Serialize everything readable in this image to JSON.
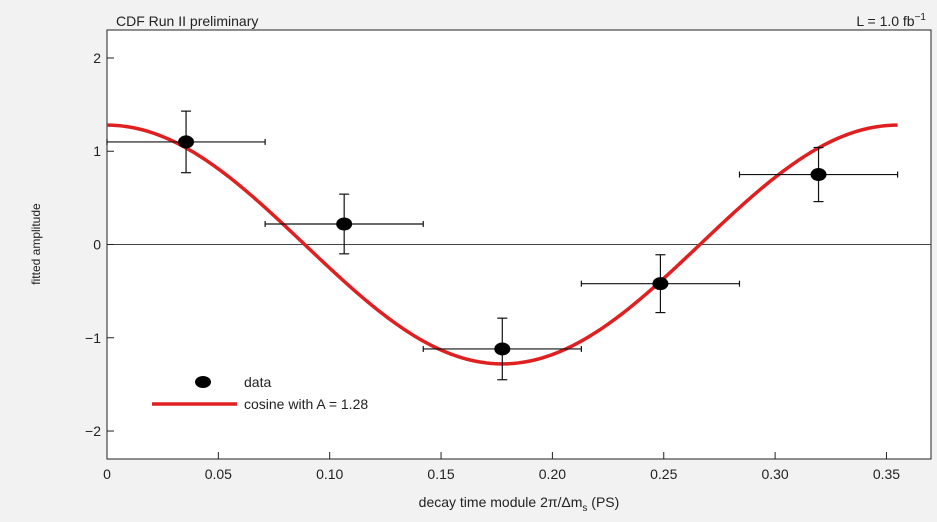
{
  "chart_data": {
    "type": "scatter",
    "annotations": {
      "top_left": "CDF Run II preliminary",
      "top_right_main": "L = 1.0 fb",
      "top_right_sup": "−1"
    },
    "xlabel": "decay time module 2π/Δm",
    "xlabel_sub": "s",
    "xlabel_suffix": " (PS)",
    "ylabel": "fitted amplitude",
    "xlim": [
      0,
      0.37
    ],
    "ylim": [
      -2.3,
      2.3
    ],
    "x_ticks": [
      0,
      0.05,
      0.1,
      0.15,
      0.2,
      0.25,
      0.3,
      0.35
    ],
    "x_tick_labels": [
      "0",
      "0.05",
      "0.10",
      "0.15",
      "0.20",
      "0.25",
      "0.30",
      "0.35"
    ],
    "y_ticks": [
      -2,
      -1,
      0,
      1,
      2
    ],
    "y_tick_labels": [
      "−2",
      "−1",
      "0",
      "1",
      "2"
    ],
    "zero_line": true,
    "grid": false,
    "legend_position": "bottom-left",
    "series": [
      {
        "name": "data",
        "kind": "points_with_errors",
        "color": "#000000",
        "points": [
          {
            "x": 0.0355,
            "y": 1.1,
            "xerr": 0.0355,
            "yerr_low": 0.33,
            "yerr_high": 0.33
          },
          {
            "x": 0.1065,
            "y": 0.22,
            "xerr": 0.0355,
            "yerr_low": 0.32,
            "yerr_high": 0.32
          },
          {
            "x": 0.1775,
            "y": -1.12,
            "xerr": 0.0355,
            "yerr_low": 0.33,
            "yerr_high": 0.33
          },
          {
            "x": 0.2485,
            "y": -0.42,
            "xerr": 0.0355,
            "yerr_low": 0.31,
            "yerr_high": 0.31
          },
          {
            "x": 0.3195,
            "y": 0.75,
            "xerr": 0.0355,
            "yerr_low": 0.29,
            "yerr_high": 0.29
          }
        ]
      },
      {
        "name": "cosine with A = 1.28",
        "kind": "curve",
        "color": "#e02020",
        "amplitude": 1.28,
        "period": 0.355,
        "x_range": [
          0,
          0.355
        ]
      }
    ]
  }
}
